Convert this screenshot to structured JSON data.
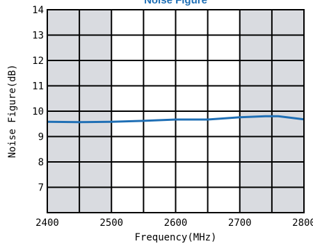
{
  "chart_data": {
    "type": "line",
    "title": "Noise Figure",
    "xlabel": "Frequency(MHz)",
    "ylabel": "Noise Figure(dB)",
    "xlim": [
      2400,
      2800
    ],
    "ylim": [
      6,
      14
    ],
    "x_ticks": [
      2400,
      2500,
      2600,
      2700,
      2800
    ],
    "y_ticks": [
      7,
      8,
      9,
      10,
      11,
      12,
      13,
      14
    ],
    "grid": true,
    "shaded_bands": [
      [
        2400,
        2500
      ],
      [
        2700,
        2800
      ]
    ],
    "series": [
      {
        "x": [
          2400,
          2450,
          2500,
          2550,
          2600,
          2650,
          2700,
          2740,
          2760,
          2800
        ],
        "values": [
          9.58,
          9.57,
          9.58,
          9.62,
          9.67,
          9.67,
          9.76,
          9.8,
          9.8,
          9.68
        ]
      }
    ]
  },
  "colors": {
    "line": "#1f6fb5",
    "band": "#d9dbe0",
    "title": "#1f6fb5",
    "grid": "#000000"
  }
}
